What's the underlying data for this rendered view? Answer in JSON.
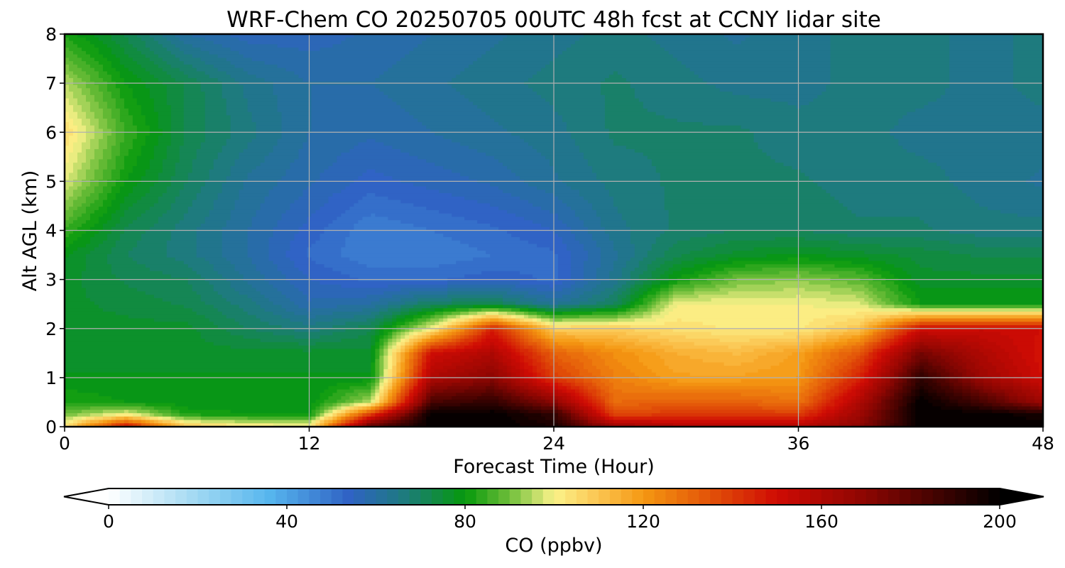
{
  "chart_data": {
    "type": "heatmap",
    "title": "WRF-Chem CO  20250705 00UTC 48h fcst at CCNY lidar site",
    "xlabel": "Forecast Time (Hour)",
    "ylabel": "Alt AGL (km)",
    "xlim": [
      0,
      48
    ],
    "ylim": [
      0,
      8
    ],
    "xticks": [
      0,
      12,
      24,
      36,
      48
    ],
    "yticks": [
      0,
      1,
      2,
      3,
      4,
      5,
      6,
      7,
      8
    ],
    "grid": true,
    "x": [
      0,
      3,
      6,
      9,
      12,
      15,
      18,
      21,
      24,
      27,
      30,
      33,
      36,
      39,
      42,
      45,
      48
    ],
    "y": [
      0,
      0.25,
      0.5,
      1,
      1.5,
      2,
      2.5,
      3,
      3.5,
      4,
      5,
      6,
      7,
      8
    ],
    "z": [
      [
        105,
        150,
        110,
        104,
        102,
        180,
        200,
        200,
        195,
        165,
        160,
        158,
        158,
        170,
        200,
        200,
        200
      ],
      [
        90,
        100,
        82,
        80,
        80,
        140,
        200,
        200,
        190,
        138,
        140,
        140,
        140,
        165,
        200,
        200,
        195
      ],
      [
        82,
        80,
        78,
        78,
        78,
        95,
        185,
        190,
        170,
        130,
        132,
        132,
        128,
        160,
        200,
        185,
        165
      ],
      [
        78,
        78,
        78,
        78,
        78,
        78,
        160,
        170,
        140,
        125,
        118,
        118,
        120,
        145,
        190,
        165,
        150
      ],
      [
        76,
        76,
        76,
        76,
        76,
        76,
        150,
        160,
        132,
        122,
        115,
        112,
        118,
        135,
        175,
        160,
        148
      ],
      [
        76,
        76,
        76,
        70,
        66,
        72,
        100,
        145,
        108,
        108,
        104,
        102,
        102,
        110,
        150,
        152,
        150
      ],
      [
        76,
        74,
        72,
        66,
        58,
        60,
        70,
        72,
        62,
        70,
        100,
        100,
        100,
        98,
        80,
        80,
        80
      ],
      [
        76,
        72,
        70,
        62,
        55,
        52,
        52,
        54,
        52,
        64,
        80,
        90,
        92,
        88,
        76,
        76,
        76
      ],
      [
        78,
        70,
        66,
        60,
        52,
        48,
        48,
        50,
        52,
        62,
        72,
        76,
        78,
        76,
        74,
        72,
        72
      ],
      [
        85,
        72,
        66,
        60,
        54,
        48,
        50,
        52,
        55,
        64,
        68,
        70,
        70,
        68,
        68,
        66,
        66
      ],
      [
        98,
        80,
        70,
        62,
        58,
        54,
        56,
        58,
        62,
        66,
        68,
        68,
        68,
        66,
        66,
        64,
        62
      ],
      [
        105,
        85,
        72,
        66,
        60,
        58,
        60,
        62,
        64,
        68,
        68,
        68,
        66,
        66,
        64,
        64,
        64
      ],
      [
        95,
        80,
        72,
        64,
        60,
        60,
        62,
        64,
        66,
        68,
        66,
        64,
        64,
        66,
        66,
        64,
        66
      ],
      [
        82,
        72,
        60,
        56,
        56,
        58,
        60,
        62,
        64,
        66,
        64,
        62,
        64,
        66,
        66,
        64,
        66
      ]
    ],
    "colorbar": {
      "label": "CO  (ppbv)",
      "min": 0,
      "max": 200,
      "ticks": [
        0,
        40,
        80,
        120,
        160,
        200
      ],
      "extend": "both",
      "levels": 80
    },
    "colormap": [
      [
        0,
        "#ffffff"
      ],
      [
        0.1,
        "#9fd8f2"
      ],
      [
        0.18,
        "#57b6ee"
      ],
      [
        0.27,
        "#2f62c4"
      ],
      [
        0.33,
        "#1e7a80"
      ],
      [
        0.4,
        "#06990c"
      ],
      [
        0.45,
        "#6fbe3a"
      ],
      [
        0.5,
        "#fbf38a"
      ],
      [
        0.55,
        "#fbc451"
      ],
      [
        0.6,
        "#f59812"
      ],
      [
        0.675,
        "#e25208"
      ],
      [
        0.75,
        "#cf0b04"
      ],
      [
        0.85,
        "#8c0602"
      ],
      [
        1,
        "#000000"
      ]
    ]
  }
}
